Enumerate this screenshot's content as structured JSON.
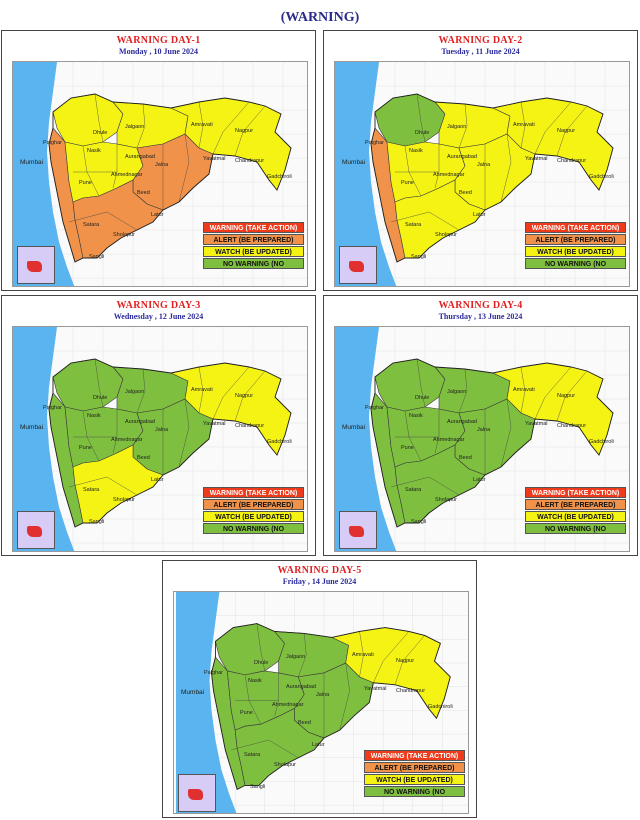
{
  "page_title": "(WARNING)",
  "legend": {
    "warning": "WARNING (TAKE ACTION)",
    "alert": "ALERT (BE PREPARED)",
    "watch": "WATCH (BE UPDATED)",
    "no_warning": "NO WARNING (NO"
  },
  "colors": {
    "warning": "#ee3b1c",
    "alert": "#f0924a",
    "watch": "#f4f314",
    "no_warning": "#7fbf3f",
    "sea": "#59b4ef"
  },
  "cities": {
    "mumbai": "Mumbai",
    "nashik": "Nasik",
    "pune": "Pune",
    "satara": "Satara",
    "sangli": "Sangli",
    "solapur": "Sholapur",
    "ahmednagar": "Ahmednagar",
    "aurangabad": "Aurangabad",
    "jalna": "Jalna",
    "beed": "Beed",
    "latur": "Latur",
    "jalgaon": "Jalgaon",
    "dhule": "Dhule",
    "amravati": "Amravati",
    "nagpur": "Nagpur",
    "yavatmal": "Yavatmal",
    "chandrapur": "Chandrapur",
    "gadchiroli": "Gadchiroli",
    "palghar": "Palghar"
  },
  "days": [
    {
      "title": "WARNING  DAY-1",
      "date": "Monday ,  10 June 2024",
      "zones": {
        "northwest": "watch",
        "north": "watch",
        "east": "watch",
        "coast": "alert",
        "central": "watch",
        "south": "alert",
        "marathwada": "alert"
      }
    },
    {
      "title": "WARNING  DAY-2",
      "date": "Tuesday ,  11 June 2024",
      "zones": {
        "northwest": "no_warning",
        "north": "watch",
        "east": "watch",
        "coast": "alert",
        "central": "watch",
        "south": "watch",
        "marathwada": "watch"
      }
    },
    {
      "title": "WARNING  DAY-3",
      "date": "Wednesday ,  12 June 2024",
      "zones": {
        "northwest": "no_warning",
        "north": "no_warning",
        "east": "watch",
        "coast": "no_warning",
        "central": "no_warning",
        "south": "watch",
        "marathwada": "no_warning"
      }
    },
    {
      "title": "WARNING  DAY-4",
      "date": "Thursday ,  13 June 2024",
      "zones": {
        "northwest": "no_warning",
        "north": "no_warning",
        "east": "watch",
        "coast": "no_warning",
        "central": "no_warning",
        "south": "no_warning",
        "marathwada": "no_warning"
      }
    },
    {
      "title": "WARNING  DAY-5",
      "date": "Friday ,  14 June 2024",
      "zones": {
        "northwest": "no_warning",
        "north": "no_warning",
        "east": "watch",
        "coast": "no_warning",
        "central": "no_warning",
        "south": "no_warning",
        "marathwada": "no_warning"
      }
    }
  ]
}
